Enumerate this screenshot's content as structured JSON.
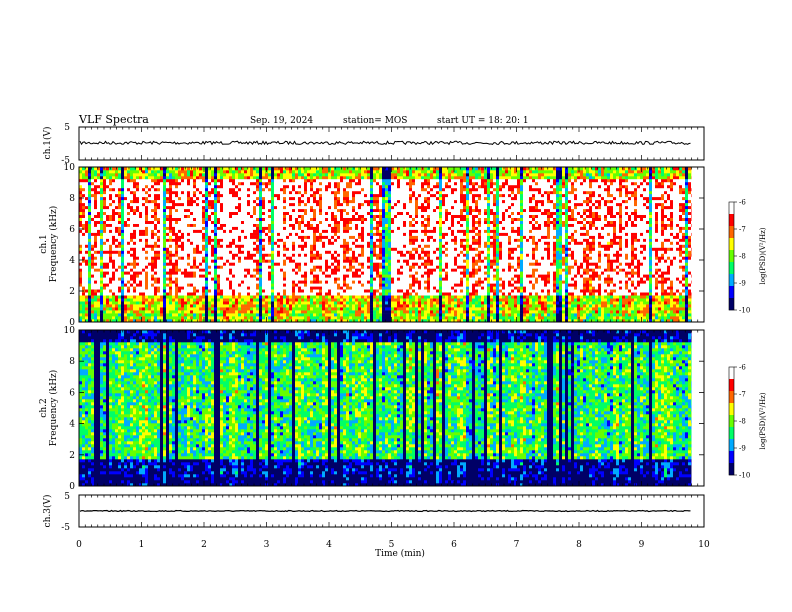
{
  "header": {
    "title": "VLF Spectra",
    "date": "Sep. 19, 2024",
    "station": "station= MOS",
    "start": "start  UT  =   18: 20: 1"
  },
  "chart_data": [
    {
      "type": "line",
      "name": "ch1-waveform",
      "ylabel": "ch.1(V)",
      "ylim": [
        -5,
        5
      ],
      "yticks": [
        "5",
        "-5"
      ],
      "xlim": [
        0,
        10
      ],
      "level": 0.2,
      "data_end_min": 9.8
    },
    {
      "type": "heatmap",
      "name": "ch1-spectrogram",
      "ylabel_line1": "ch.1",
      "ylabel_line2": "Frequency (kHz)",
      "ylim": [
        0,
        10
      ],
      "yticks": [
        "0",
        "2",
        "4",
        "6",
        "8",
        "10"
      ],
      "xlim": [
        0,
        10
      ],
      "data_end_min": 9.8,
      "dominant_level": -7.0,
      "colorbar": {
        "ticks": [
          "-6",
          "-7",
          "-8",
          "-9",
          "-10"
        ],
        "label": "log(PSD)(V²/Hz)",
        "range": [
          -10,
          -6
        ]
      }
    },
    {
      "type": "heatmap",
      "name": "ch2-spectrogram",
      "ylabel_line1": "ch.2",
      "ylabel_line2": "Frequency (kHz)",
      "ylim": [
        0,
        10
      ],
      "yticks": [
        "0",
        "2",
        "4",
        "6",
        "8",
        "10"
      ],
      "xlim": [
        0,
        10
      ],
      "data_end_min": 9.8,
      "dominant_level": -8.0,
      "colorbar": {
        "ticks": [
          "-6",
          "-7",
          "-8",
          "-9",
          "-10"
        ],
        "label": "log(PSD)(V²/Hz)",
        "range": [
          -10,
          -6
        ]
      }
    },
    {
      "type": "line",
      "name": "ch3-waveform",
      "ylabel": "ch.3(V)",
      "ylim": [
        -5,
        5
      ],
      "yticks": [
        "5",
        "-5"
      ],
      "xlim": [
        0,
        10
      ],
      "level": 0.0,
      "data_end_min": 9.8
    }
  ],
  "xaxis": {
    "label": "Time  (min)",
    "ticks": [
      "0",
      "1",
      "2",
      "3",
      "4",
      "5",
      "6",
      "7",
      "8",
      "9",
      "10"
    ]
  },
  "colors": {
    "palette": [
      "#000066",
      "#0000ff",
      "#00aaff",
      "#00ff66",
      "#66ff00",
      "#ffff00",
      "#ff6600",
      "#ff0000",
      "#ffffff"
    ]
  }
}
